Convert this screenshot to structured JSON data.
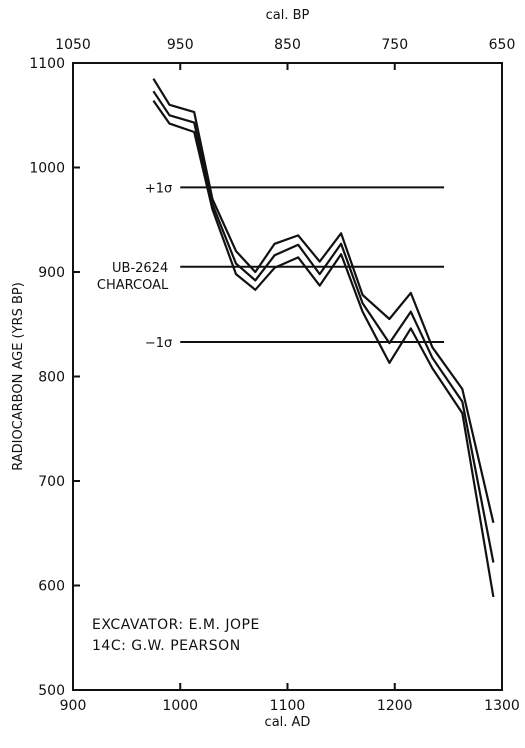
{
  "chart_data": {
    "type": "line",
    "xlabel": "cal. AD",
    "x2label": "cal. BP",
    "ylabel": "RADIOCARBON AGE (YRS BP)",
    "xlim": [
      900,
      1300
    ],
    "x2lim": [
      1050,
      650
    ],
    "ylim": [
      500,
      1100
    ],
    "xticks": [
      900,
      1000,
      1100,
      1200,
      1300
    ],
    "x2ticks": [
      1050,
      950,
      850,
      750,
      650
    ],
    "yticks": [
      500,
      600,
      700,
      800,
      900,
      1000,
      1100
    ],
    "grid": false,
    "series": [
      {
        "x": [
          975,
          990,
          1013,
          1030,
          1052,
          1070,
          1088,
          1110,
          1130,
          1150,
          1170,
          1195,
          1215,
          1235,
          1263,
          1292
        ],
        "values": [
          1085,
          1060,
          1053,
          970,
          920,
          900,
          927,
          935,
          910,
          937,
          878,
          855,
          880,
          828,
          788,
          660
        ]
      },
      {
        "x": [
          975,
          990,
          1013,
          1030,
          1052,
          1070,
          1088,
          1110,
          1130,
          1150,
          1170,
          1195,
          1215,
          1235,
          1263,
          1292
        ],
        "values": [
          1073,
          1050,
          1043,
          965,
          908,
          892,
          916,
          926,
          898,
          927,
          870,
          832,
          862,
          818,
          776,
          622
        ]
      },
      {
        "x": [
          975,
          990,
          1013,
          1030,
          1052,
          1070,
          1088,
          1110,
          1130,
          1150,
          1170,
          1195,
          1215,
          1235,
          1263,
          1292
        ],
        "values": [
          1064,
          1042,
          1034,
          960,
          898,
          883,
          904,
          914,
          887,
          917,
          862,
          813,
          846,
          808,
          765,
          589
        ]
      }
    ],
    "reference_lines": [
      {
        "y": 981,
        "x_start": 1000,
        "x_end": 1246,
        "label": "+1σ"
      },
      {
        "y": 905,
        "x_start": 1000,
        "x_end": 1246,
        "label_lines": [
          "UB-2624",
          "CHARCOAL"
        ]
      },
      {
        "y": 833,
        "x_start": 1000,
        "x_end": 1246,
        "label": "−1σ"
      }
    ],
    "annotations": [
      "EXCAVATOR: E.M. JOPE",
      "14C: G.W. PEARSON"
    ]
  }
}
